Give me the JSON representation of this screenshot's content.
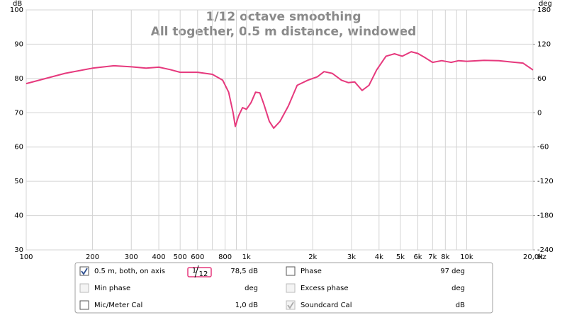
{
  "chart_data": {
    "type": "line",
    "title": "1/12 octave smoothing",
    "subtitle": "All together, 0.5 m distance, windowed",
    "y_label": "dB",
    "y2_label": "deg",
    "x_unit": "Hz",
    "xlog": true,
    "grid": true,
    "xlim": [
      100,
      20000
    ],
    "ylim": [
      30,
      100
    ],
    "y2lim": [
      -240,
      180
    ],
    "xticks": [
      100,
      200,
      300,
      400,
      500,
      600,
      800,
      {
        "value": 1000,
        "label": "1k"
      },
      {
        "value": 2000,
        "label": "2k"
      },
      {
        "value": 3000,
        "label": "3k"
      },
      {
        "value": 4000,
        "label": "4k"
      },
      {
        "value": 5000,
        "label": "5k"
      },
      {
        "value": 6000,
        "label": "6k"
      },
      {
        "value": 7000,
        "label": "7k"
      },
      {
        "value": 8000,
        "label": "8k"
      },
      {
        "value": 10000,
        "label": "10k"
      },
      {
        "value": 20000,
        "label": "20,0k"
      }
    ],
    "xminor": [
      700,
      900,
      9000
    ],
    "yticks": [
      30,
      40,
      50,
      60,
      70,
      80,
      90,
      100
    ],
    "y2ticks": [
      -240,
      -180,
      -120,
      -60,
      0,
      60,
      120,
      180
    ],
    "series": [
      {
        "name": "0.5 m, both, on axis",
        "color": "#e6397d",
        "x": [
          100,
          150,
          200,
          250,
          300,
          350,
          400,
          450,
          500,
          600,
          700,
          780,
          830,
          870,
          890,
          920,
          960,
          1000,
          1050,
          1100,
          1150,
          1200,
          1270,
          1330,
          1420,
          1550,
          1700,
          1900,
          2100,
          2250,
          2450,
          2700,
          2900,
          3100,
          3350,
          3600,
          3900,
          4300,
          4700,
          5100,
          5600,
          6000,
          6500,
          7000,
          7700,
          8500,
          9200,
          10000,
          12000,
          14000,
          16000,
          18000,
          20000
        ],
        "values": [
          78.5,
          81.5,
          83,
          83.7,
          83.4,
          83,
          83.3,
          82.6,
          81.8,
          81.8,
          81.2,
          79.5,
          76,
          70,
          66,
          69,
          71.5,
          71,
          73,
          76,
          75.8,
          72.5,
          67.5,
          65.5,
          67.5,
          72,
          78,
          79.5,
          80.5,
          82,
          81.5,
          79.5,
          78.8,
          79,
          76.5,
          78,
          82.5,
          86.5,
          87.2,
          86.5,
          87.8,
          87.3,
          86,
          84.7,
          85.2,
          84.7,
          85.2,
          85,
          85.3,
          85.2,
          84.8,
          84.5,
          82.5
        ]
      }
    ]
  },
  "legend_panel": {
    "smoothing_num": "1",
    "smoothing_den": "12",
    "left": [
      {
        "value": "78,5 dB",
        "checked": true,
        "enabled": true,
        "color": "#e6397d"
      },
      {
        "label": "Min phase",
        "value": "deg",
        "checked": false,
        "enabled": false,
        "color": "#999999"
      },
      {
        "label": "Mic/Meter Cal",
        "value": "1,0 dB",
        "checked": false,
        "enabled": true,
        "color": "#000000"
      }
    ],
    "right": [
      {
        "label": "Phase",
        "value": "97 deg",
        "checked": false,
        "enabled": true,
        "color": "#e6397d"
      },
      {
        "label": "Excess phase",
        "value": "deg",
        "checked": false,
        "enabled": false,
        "color": "#999999"
      },
      {
        "label": "Soundcard Cal",
        "value": "dB",
        "checked": true,
        "enabled": false,
        "color": "#999999"
      }
    ]
  }
}
